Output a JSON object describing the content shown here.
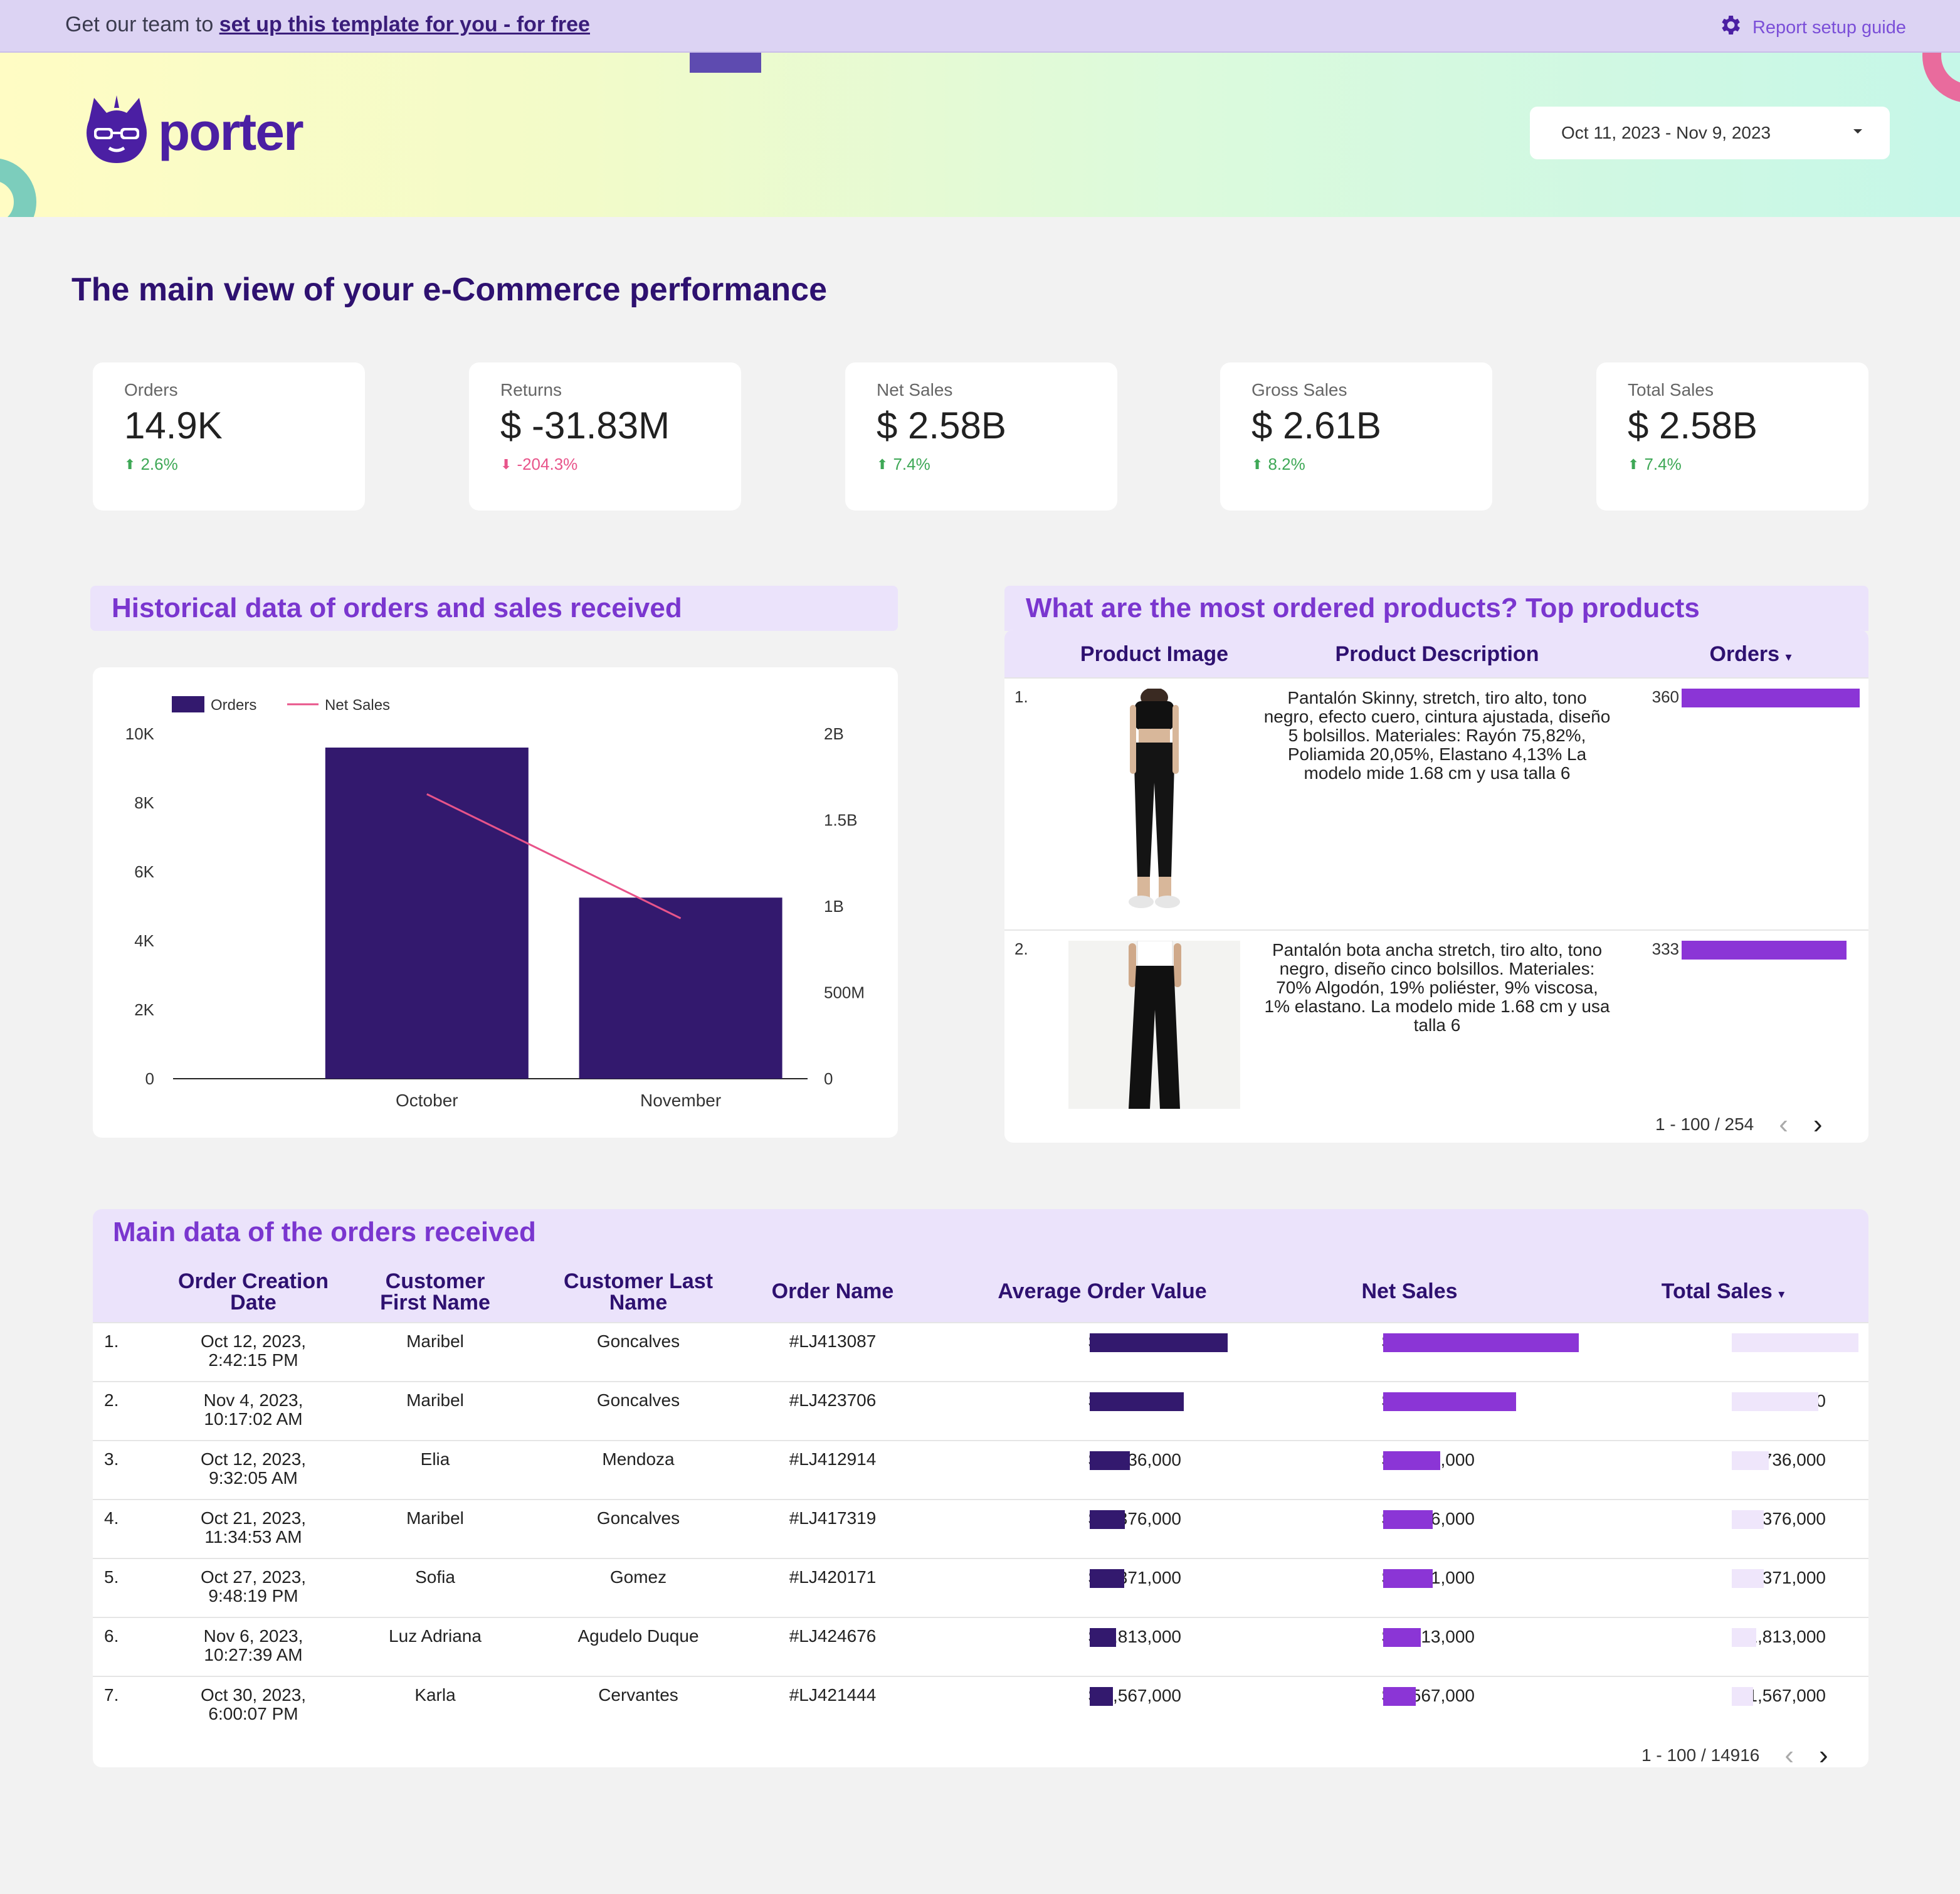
{
  "banner": {
    "promo_prefix": "Get our team to ",
    "promo_link": "set up this template for you - for free",
    "guide_label": "Report setup guide"
  },
  "brand": {
    "name": "porter",
    "accent": "#4b1fa3"
  },
  "date_range": {
    "value": "Oct 11, 2023 - Nov 9, 2023"
  },
  "page_title": "The main view of your e-Commerce performance",
  "kpis": [
    {
      "label": "Orders",
      "value": "14.9K",
      "delta": "2.6%",
      "direction": "up"
    },
    {
      "label": "Returns",
      "value": "$ -31.83M",
      "delta": "-204.3%",
      "direction": "down"
    },
    {
      "label": "Net Sales",
      "value": "$ 2.58B",
      "delta": "7.4%",
      "direction": "up"
    },
    {
      "label": "Gross Sales",
      "value": "$ 2.61B",
      "delta": "8.2%",
      "direction": "up"
    },
    {
      "label": "Total Sales",
      "value": "$ 2.58B",
      "delta": "7.4%",
      "direction": "up"
    }
  ],
  "history": {
    "title": "Historical data of orders and sales received"
  },
  "chart_data": {
    "type": "bar",
    "title": "Historical data of orders and sales received",
    "categories": [
      "October",
      "November"
    ],
    "series": [
      {
        "name": "Orders",
        "type": "bar",
        "axis": "left",
        "values": [
          9600,
          5250
        ],
        "color": "#33196e"
      },
      {
        "name": "Net Sales",
        "type": "line",
        "axis": "right",
        "values": [
          1650000000,
          930000000
        ],
        "color": "#e8548a"
      }
    ],
    "y_left": {
      "min": 0,
      "max": 10000,
      "ticks": [
        "0",
        "2K",
        "4K",
        "6K",
        "8K",
        "10K"
      ]
    },
    "y_right": {
      "min": 0,
      "max": 2000000000,
      "ticks": [
        "0",
        "500M",
        "1B",
        "1.5B",
        "2B"
      ]
    },
    "legend": [
      "Orders",
      "Net Sales"
    ],
    "legend_position": "top-left"
  },
  "products": {
    "title": "What are the most ordered products? Top products",
    "columns": [
      "Product Image",
      "Product Description",
      "Orders"
    ],
    "rows": [
      {
        "idx": "1.",
        "description": "Pantalón Skinny, stretch, tiro alto, tono negro, efecto cuero, cintura ajustada, diseño 5 bolsillos. Materiales: Rayón 75,82%, Poliamida 20,05%, Elastano 4,13% La modelo mide 1.68 cm y usa talla 6",
        "orders": 360
      },
      {
        "idx": "2.",
        "description": "Pantalón bota ancha stretch, tiro alto, tono negro, diseño cinco bolsillos. Materiales: 70% Algodón, 19% poliéster, 9% viscosa, 1% elastano. La modelo mide 1.68 cm y usa talla 6",
        "orders": 333
      }
    ],
    "max_orders": 360,
    "pager": "1 - 100 / 254"
  },
  "orders": {
    "title": "Main data of the orders received",
    "columns": [
      "Order Creation Date",
      "Customer First Name",
      "Customer Last Name",
      "Order Name",
      "Average Order Value",
      "Net Sales",
      "Total Sales"
    ],
    "max_value": 9407000,
    "rows": [
      {
        "idx": "1.",
        "date": "Oct 12, 2023,",
        "time": "2:42:15 PM",
        "first": "Maribel",
        "last": "Goncalves",
        "order": "#LJ413087",
        "value": 9407000,
        "aov": "$ 9,407,000",
        "net": "$ 9,407,000",
        "total": "$ 9,407,000"
      },
      {
        "idx": "2.",
        "date": "Nov 4, 2023,",
        "time": "10:17:02 AM",
        "first": "Maribel",
        "last": "Goncalves",
        "order": "#LJ423706",
        "value": 6404000,
        "aov": "$ 6,404,000",
        "net": "$ 6,404,000",
        "total": "$ 6,404,000"
      },
      {
        "idx": "3.",
        "date": "Oct 12, 2023,",
        "time": "9:32:05 AM",
        "first": "Elia",
        "last": "Mendoza",
        "order": "#LJ412914",
        "value": 2736000,
        "aov": "$ 2,736,000",
        "net": "$ 2,736,000",
        "total": "$ 2,736,000"
      },
      {
        "idx": "4.",
        "date": "Oct 21, 2023,",
        "time": "11:34:53 AM",
        "first": "Maribel",
        "last": "Goncalves",
        "order": "#LJ417319",
        "value": 2376000,
        "aov": "$ 2,376,000",
        "net": "$ 2,376,000",
        "total": "$ 2,376,000"
      },
      {
        "idx": "5.",
        "date": "Oct 27, 2023,",
        "time": "9:48:19 PM",
        "first": "Sofia",
        "last": "Gomez",
        "order": "#LJ420171",
        "value": 2371000,
        "aov": "$ 2,371,000",
        "net": "$ 2,371,000",
        "total": "$ 2,371,000"
      },
      {
        "idx": "6.",
        "date": "Nov 6, 2023,",
        "time": "10:27:39 AM",
        "first": "Luz Adriana",
        "last": "Agudelo Duque",
        "order": "#LJ424676",
        "value": 1813000,
        "aov": "$ 1,813,000",
        "net": "$ 1,813,000",
        "total": "$ 1,813,000"
      },
      {
        "idx": "7.",
        "date": "Oct 30, 2023,",
        "time": "6:00:07 PM",
        "first": "Karla",
        "last": "Cervantes",
        "order": "#LJ421444",
        "value": 1567000,
        "aov": "$ 1,567,000",
        "net": "$ 1,567,000",
        "total": "$ 1,567,000"
      }
    ],
    "pager": "1 - 100 / 14916"
  },
  "colors": {
    "primary": "#33196e",
    "accent": "#8b35d6",
    "pink": "#e8548a",
    "green": "#3ea856"
  }
}
